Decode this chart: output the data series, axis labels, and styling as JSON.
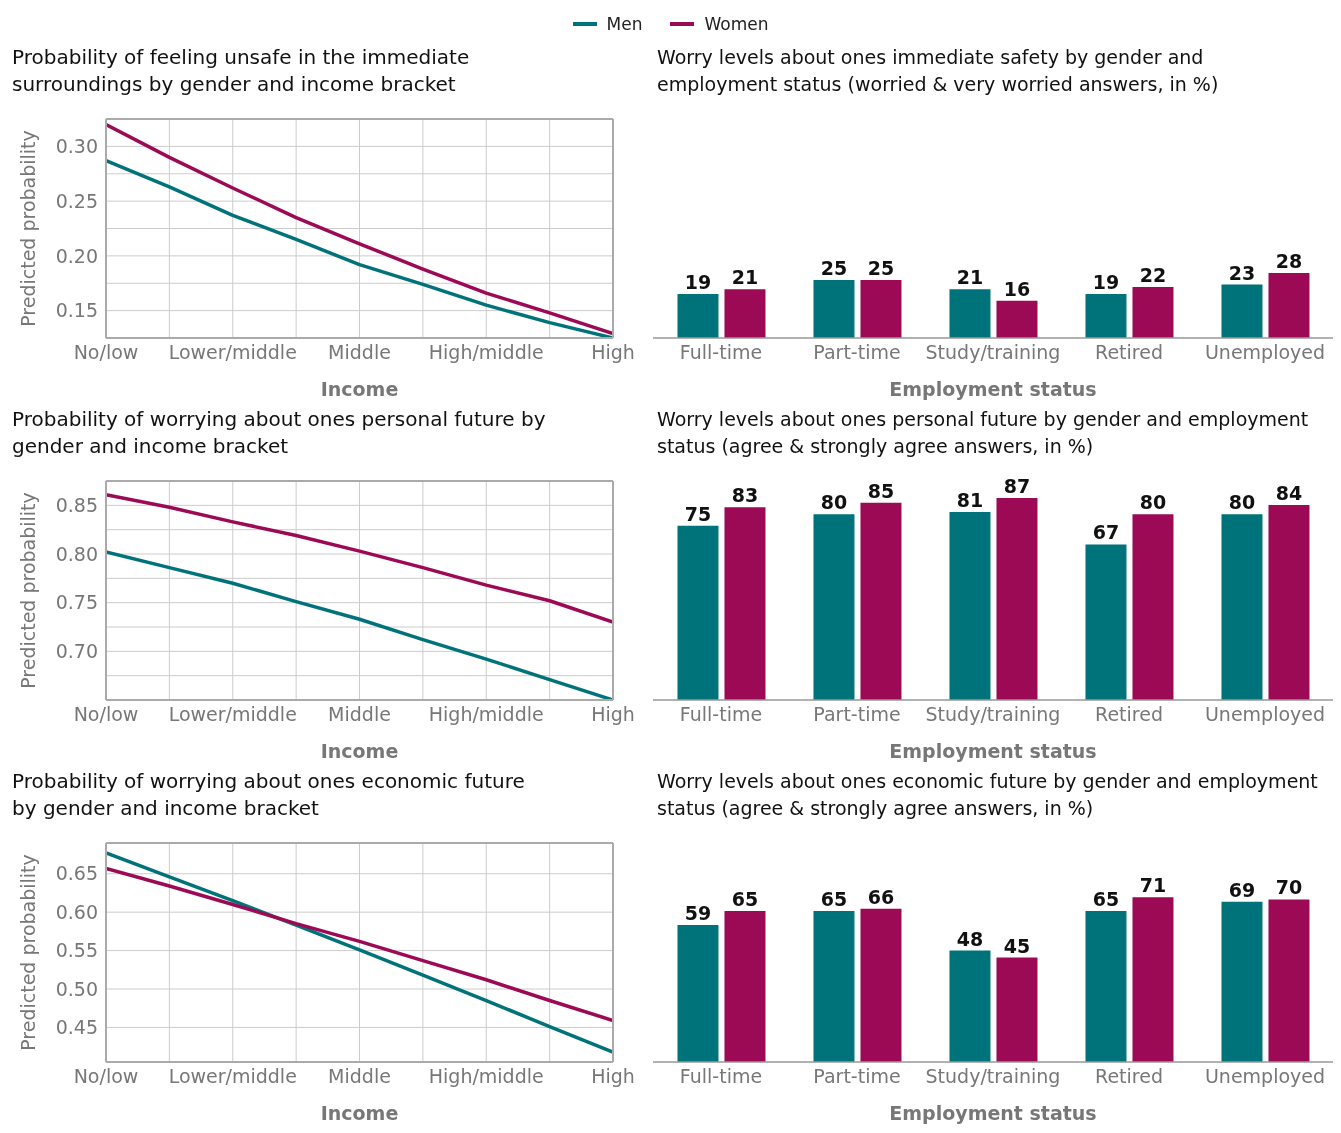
{
  "chart_data": [
    {
      "type": "line",
      "title": "Probability of feeling unsafe in the immediate surroundings by gender and income bracket",
      "xlabel": "Income",
      "ylabel": "Predicted probability",
      "legend": "top",
      "grid": true,
      "categories": [
        "No/low",
        null,
        "Lower/middle",
        null,
        "Middle",
        null,
        "High/middle",
        null,
        "High"
      ],
      "ylim": [
        0.125,
        0.325
      ],
      "yticks": [
        {
          "value": 0.125,
          "label": null
        },
        {
          "value": 0.15,
          "label": "0.15"
        },
        {
          "value": 0.175,
          "label": null
        },
        {
          "value": 0.2,
          "label": "0.20"
        },
        {
          "value": 0.225,
          "label": null
        },
        {
          "value": 0.25,
          "label": "0.25"
        },
        {
          "value": 0.275,
          "label": null
        },
        {
          "value": 0.3,
          "label": "0.30"
        },
        {
          "value": 0.325,
          "label": null
        }
      ],
      "series": [
        {
          "name": "Men",
          "color": "#00737a",
          "values": [
            0.287,
            0.263,
            0.237,
            0.215,
            0.192,
            0.174,
            0.155,
            0.139,
            0.125
          ]
        },
        {
          "name": "Women",
          "color": "#9c0a56",
          "values": [
            0.32,
            0.29,
            0.262,
            0.235,
            0.211,
            0.188,
            0.166,
            0.148,
            0.129
          ]
        }
      ]
    },
    {
      "type": "bar",
      "title": "Worry levels about ones immediate safety by gender and employment status (worried & very worried answers, in %)",
      "xlabel": "Employment status",
      "data_labels": true,
      "categories": [
        "Full-time",
        "Part-time",
        "Study/training",
        "Retired",
        "Unemployed"
      ],
      "series": [
        {
          "color": "#00737a",
          "values": [
            19,
            25,
            21,
            19,
            23
          ]
        },
        {
          "color": "#9c0a56",
          "values": [
            21,
            25,
            16,
            22,
            28
          ]
        }
      ]
    },
    {
      "type": "line",
      "title": "Probability of worrying about ones personal future by gender and income bracket",
      "xlabel": "Income",
      "ylabel": "Predicted probability",
      "grid": true,
      "categories": [
        "No/low",
        null,
        "Lower/middle",
        null,
        "Middle",
        null,
        "High/middle",
        null,
        "High"
      ],
      "ylim": [
        0.65,
        0.875
      ],
      "yticks": [
        {
          "value": 0.65,
          "label": null
        },
        {
          "value": 0.675,
          "label": null
        },
        {
          "value": 0.7,
          "label": "0.70"
        },
        {
          "value": 0.725,
          "label": null
        },
        {
          "value": 0.75,
          "label": "0.75"
        },
        {
          "value": 0.775,
          "label": null
        },
        {
          "value": 0.8,
          "label": "0.80"
        },
        {
          "value": 0.825,
          "label": null
        },
        {
          "value": 0.85,
          "label": "0.85"
        },
        {
          "value": 0.875,
          "label": null
        }
      ],
      "series": [
        {
          "color": "#00737a",
          "values": [
            0.802,
            0.786,
            0.77,
            0.751,
            0.733,
            0.712,
            0.692,
            0.671,
            0.65
          ]
        },
        {
          "color": "#9c0a56",
          "values": [
            0.861,
            0.848,
            0.833,
            0.819,
            0.803,
            0.786,
            0.768,
            0.752,
            0.73
          ]
        }
      ]
    },
    {
      "type": "bar",
      "title": "Worry levels about ones personal future by gender and employment status (agree & strongly agree answers, in %)",
      "xlabel": "Employment status",
      "data_labels": true,
      "categories": [
        "Full-time",
        "Part-time",
        "Study/training",
        "Retired",
        "Unemployed"
      ],
      "series": [
        {
          "color": "#00737a",
          "values": [
            75,
            80,
            81,
            67,
            80
          ]
        },
        {
          "color": "#9c0a56",
          "values": [
            83,
            85,
            87,
            80,
            84
          ]
        }
      ]
    },
    {
      "type": "line",
      "title": "Probability of worrying about ones economic future by gender and income bracket",
      "xlabel": "Income",
      "ylabel": "Predicted probability",
      "grid": true,
      "categories": [
        "No/low",
        null,
        "Lower/middle",
        null,
        "Middle",
        null,
        "High/middle",
        null,
        "High"
      ],
      "ylim": [
        0.405,
        0.69
      ],
      "yticks": [
        {
          "value": 0.45,
          "label": "0.45"
        },
        {
          "value": 0.5,
          "label": "0.50"
        },
        {
          "value": 0.55,
          "label": "0.55"
        },
        {
          "value": 0.6,
          "label": "0.60"
        },
        {
          "value": 0.65,
          "label": "0.65"
        }
      ],
      "series": [
        {
          "color": "#00737a",
          "values": [
            0.677,
            0.646,
            0.615,
            0.583,
            0.551,
            0.518,
            0.485,
            0.451,
            0.418
          ]
        },
        {
          "color": "#9c0a56",
          "values": [
            0.657,
            0.634,
            0.61,
            0.585,
            0.562,
            0.537,
            0.512,
            0.485,
            0.459
          ]
        }
      ]
    },
    {
      "type": "bar",
      "title": "Worry levels about ones economic future by gender and employment status (agree & strongly agree answers, in %)",
      "xlabel": "Employment status",
      "data_labels": true,
      "categories": [
        "Full-time",
        "Part-time",
        "Study/training",
        "Retired",
        "Unemployed"
      ],
      "series": [
        {
          "color": "#00737a",
          "values": [
            59,
            65,
            48,
            65,
            69
          ]
        },
        {
          "color": "#9c0a56",
          "values": [
            65,
            66,
            45,
            71,
            70
          ]
        }
      ]
    }
  ]
}
